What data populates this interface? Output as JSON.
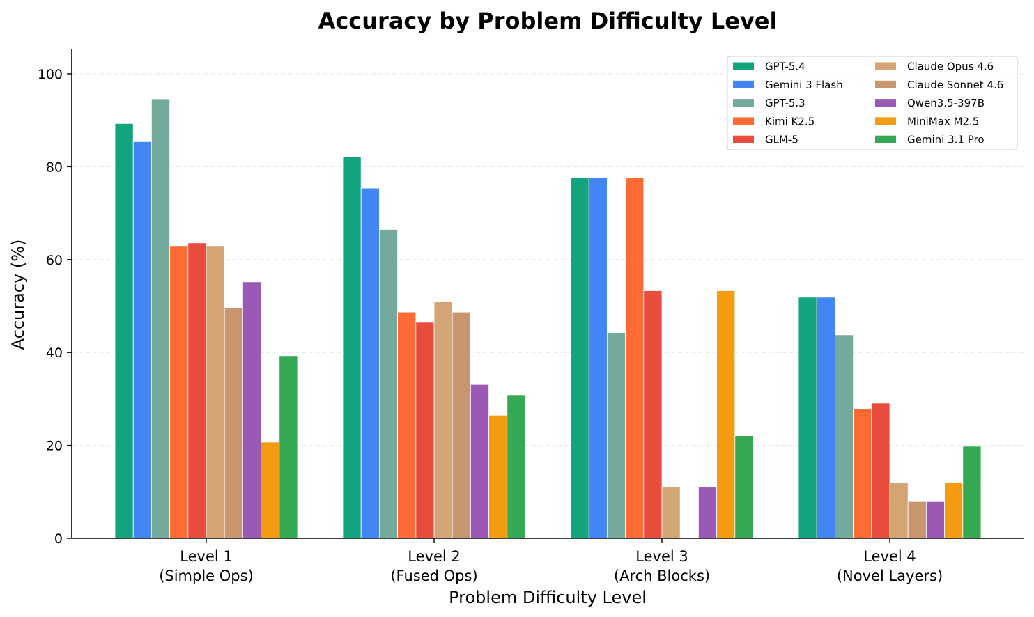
{
  "chart_data": {
    "type": "bar",
    "title": "Accuracy by Problem Difficulty Level",
    "xlabel": "Problem Difficulty Level",
    "ylabel": "Accuracy (%)",
    "ylim": [
      0,
      105
    ],
    "yticks": [
      0,
      20,
      40,
      60,
      80,
      100
    ],
    "grid": "horizontal dashed",
    "legend_position": "top-right",
    "categories": [
      [
        "Level 1",
        "(Simple Ops)"
      ],
      [
        "Level 2",
        "(Fused Ops)"
      ],
      [
        "Level 3",
        "(Arch Blocks)"
      ],
      [
        "Level 4",
        "(Novel Layers)"
      ]
    ],
    "series": [
      {
        "name": "GPT-5.4",
        "color": "#12a37f",
        "values": [
          89.3,
          82.1,
          77.7,
          51.9
        ]
      },
      {
        "name": "Gemini 3 Flash",
        "color": "#4285f4",
        "values": [
          85.4,
          75.4,
          77.7,
          51.9
        ]
      },
      {
        "name": "GPT-5.3",
        "color": "#74aa9c",
        "values": [
          94.6,
          66.5,
          44.3,
          43.8
        ]
      },
      {
        "name": "Kimi K2.5",
        "color": "#ff6b35",
        "values": [
          63.0,
          48.7,
          77.7,
          27.9
        ]
      },
      {
        "name": "GLM-5",
        "color": "#e74c3c",
        "values": [
          63.6,
          46.5,
          53.3,
          29.1
        ]
      },
      {
        "name": "Claude Opus 4.6",
        "color": "#d4a574",
        "values": [
          63.0,
          51.0,
          11.0,
          11.9
        ]
      },
      {
        "name": "Claude Sonnet 4.6",
        "color": "#c8956c",
        "values": [
          49.7,
          48.7,
          0,
          7.9
        ]
      },
      {
        "name": "Qwen3.5-397B",
        "color": "#9b59b6",
        "values": [
          55.2,
          33.1,
          11.0,
          7.9
        ]
      },
      {
        "name": "MiniMax M2.5",
        "color": "#f39c12",
        "values": [
          20.7,
          26.5,
          53.3,
          12.0
        ]
      },
      {
        "name": "Gemini 3.1 Pro",
        "color": "#34a853",
        "values": [
          39.3,
          30.9,
          22.1,
          19.8
        ]
      }
    ]
  }
}
